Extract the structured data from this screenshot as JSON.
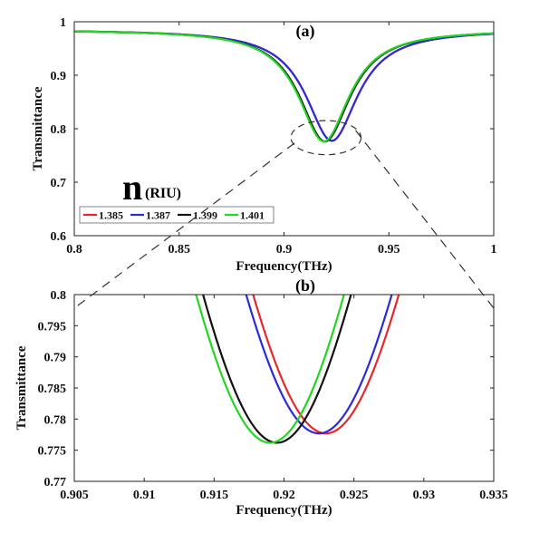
{
  "chart_data": [
    {
      "type": "line",
      "panel_title": "(a)",
      "xlabel": "Frequency(THz)",
      "ylabel": "Transmittance",
      "xlim": [
        0.8,
        1.0
      ],
      "ylim": [
        0.6,
        1.0
      ],
      "xticks": [
        "0.8",
        "0.85",
        "0.9",
        "0.95",
        "1"
      ],
      "yticks": [
        "0.6",
        "0.7",
        "0.8",
        "0.9",
        "1"
      ],
      "legend_title": "n",
      "legend_title_suffix": "(RIU)",
      "legend_position": "lower-left",
      "series": [
        {
          "name": "1.385",
          "color": "#e8262b",
          "min_x": 0.9228,
          "min_y": 0.7775,
          "width": 0.03
        },
        {
          "name": "1.387",
          "color": "#2b2bd9",
          "min_x": 0.9228,
          "min_y": 0.7775,
          "width": 0.03
        },
        {
          "name": "1.399",
          "color": "#111111",
          "min_x": 0.9195,
          "min_y": 0.7762,
          "width": 0.0295
        },
        {
          "name": "1.401",
          "color": "#22d622",
          "min_x": 0.919,
          "min_y": 0.7762,
          "width": 0.0295
        }
      ]
    },
    {
      "type": "line",
      "panel_title": "(b)",
      "xlabel": "Frequency(THz)",
      "ylabel": "Transmittance",
      "xlim": [
        0.905,
        0.935
      ],
      "ylim": [
        0.77,
        0.8
      ],
      "xticks": [
        "0.905",
        "0.91",
        "0.915",
        "0.92",
        "0.925",
        "0.93",
        "0.935"
      ],
      "yticks": [
        "0.77",
        "0.775",
        "0.78",
        "0.785",
        "0.79",
        "0.795",
        "0.8"
      ],
      "series": [
        {
          "name": "1.385",
          "color": "#e8262b",
          "min_x": 0.923,
          "min_y": 0.7777,
          "width": 0.03
        },
        {
          "name": "1.387",
          "color": "#2b2bd9",
          "min_x": 0.9225,
          "min_y": 0.7777,
          "width": 0.03
        },
        {
          "name": "1.399",
          "color": "#111111",
          "min_x": 0.9195,
          "min_y": 0.7762,
          "width": 0.0295
        },
        {
          "name": "1.401",
          "color": "#22d622",
          "min_x": 0.919,
          "min_y": 0.7762,
          "width": 0.0295
        }
      ]
    }
  ]
}
